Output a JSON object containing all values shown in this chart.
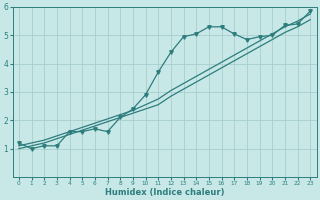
{
  "xlabel": "Humidex (Indice chaleur)",
  "ylabel": "",
  "x_data": [
    0,
    1,
    2,
    3,
    4,
    5,
    6,
    7,
    8,
    9,
    10,
    11,
    12,
    13,
    14,
    15,
    16,
    17,
    18,
    19,
    20,
    21,
    22,
    23
  ],
  "line1_y": [
    1.2,
    1.0,
    1.1,
    1.1,
    1.6,
    1.6,
    1.7,
    1.6,
    2.1,
    2.4,
    2.9,
    3.7,
    4.4,
    4.95,
    5.05,
    5.3,
    5.3,
    5.05,
    4.85,
    4.95,
    5.0,
    5.35,
    5.4,
    5.85
  ],
  "line2_y": [
    1.0,
    1.1,
    1.2,
    1.35,
    1.5,
    1.65,
    1.8,
    1.95,
    2.1,
    2.25,
    2.4,
    2.55,
    2.85,
    3.1,
    3.35,
    3.6,
    3.85,
    4.1,
    4.35,
    4.6,
    4.85,
    5.1,
    5.3,
    5.55
  ],
  "line3_y": [
    1.1,
    1.2,
    1.3,
    1.45,
    1.6,
    1.75,
    1.9,
    2.05,
    2.2,
    2.35,
    2.55,
    2.75,
    3.05,
    3.3,
    3.55,
    3.8,
    4.05,
    4.3,
    4.55,
    4.8,
    5.05,
    5.3,
    5.5,
    5.75
  ],
  "line_color": "#2e7d7d",
  "bg_color": "#c8e8e8",
  "grid_color": "#a8cece",
  "ylim": [
    0,
    6
  ],
  "xlim": [
    -0.5,
    23.5
  ],
  "yticks": [
    1,
    2,
    3,
    4,
    5,
    6
  ],
  "xticks": [
    0,
    1,
    2,
    3,
    4,
    5,
    6,
    7,
    8,
    9,
    10,
    11,
    12,
    13,
    14,
    15,
    16,
    17,
    18,
    19,
    20,
    21,
    22,
    23
  ]
}
